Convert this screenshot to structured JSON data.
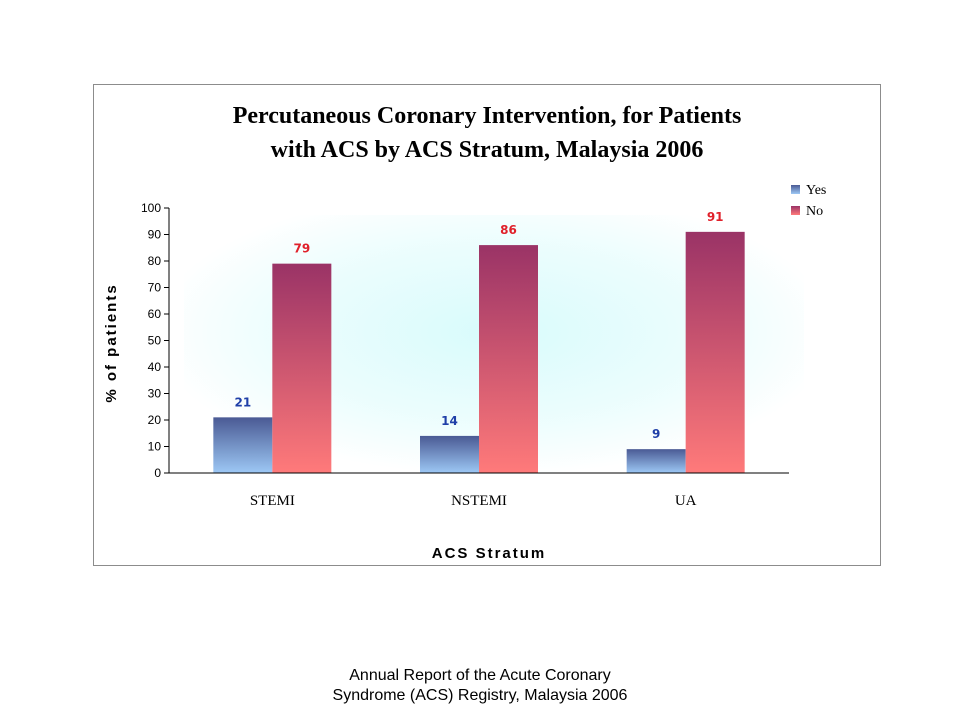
{
  "chart_data": {
    "type": "bar",
    "title_line1": "Percutaneous Coronary Intervention, for Patients",
    "title_line2": "with ACS by ACS Stratum, Malaysia 2006",
    "xlabel": "ACS Stratum",
    "ylabel": "% of patients",
    "ylim": [
      0,
      100
    ],
    "yticks": [
      "0",
      "10",
      "20",
      "30",
      "40",
      "50",
      "60",
      "70",
      "80",
      "90",
      "100"
    ],
    "categories": [
      "STEMI",
      "NSTEMI",
      "UA"
    ],
    "series": [
      {
        "name": "Yes",
        "values": [
          21,
          14,
          9
        ],
        "labels": [
          "21",
          "14",
          "9"
        ],
        "color_top": "#4a5a94",
        "color_bottom": "#9dc8f5",
        "label_color": "#1f3fa8"
      },
      {
        "name": "No",
        "values": [
          79,
          86,
          91
        ],
        "labels": [
          "79",
          "86",
          "91"
        ],
        "color_top": "#9a3366",
        "color_bottom": "#ff7a7a",
        "label_color": "#e0202a"
      }
    ],
    "legend_position": "top-right",
    "grid": false,
    "plot_background": "#d8fbfc"
  },
  "caption": {
    "line1": "Annual Report of the Acute Coronary",
    "line2": "Syndrome (ACS) Registry, Malaysia 2006"
  }
}
